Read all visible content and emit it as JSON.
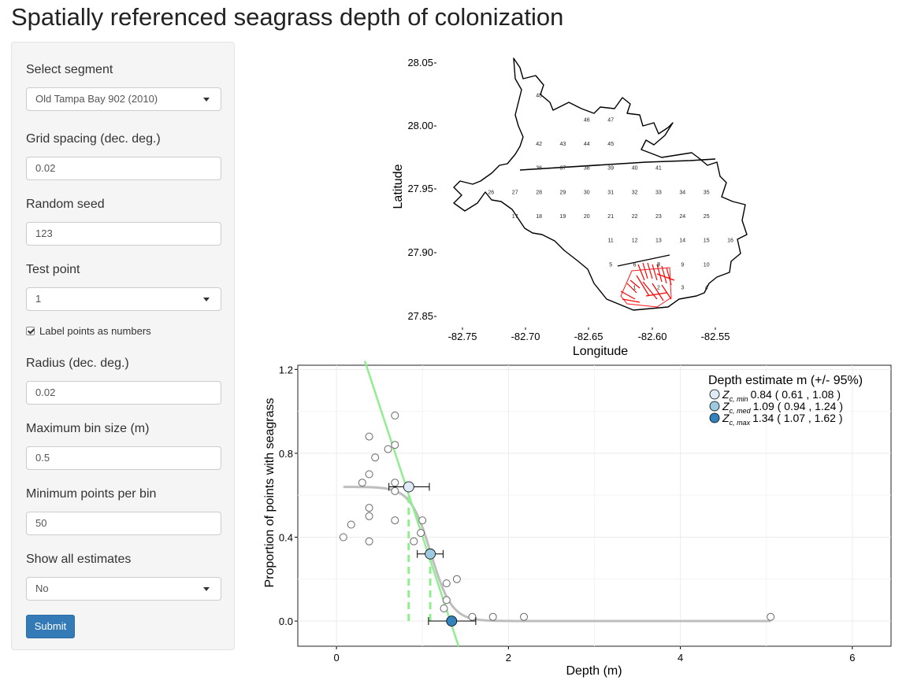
{
  "page": {
    "title": "Spatially referenced seagrass depth of colonization"
  },
  "sidebar": {
    "segment": {
      "label": "Select segment",
      "value": "Old Tampa Bay 902 (2010)"
    },
    "grid": {
      "label": "Grid spacing (dec. deg.)",
      "value": "0.02"
    },
    "seed": {
      "label": "Random seed",
      "value": "123"
    },
    "test_point": {
      "label": "Test point",
      "value": "1"
    },
    "label_points": {
      "label": "Label points as numbers",
      "checked": true
    },
    "radius": {
      "label": "Radius (dec. deg.)",
      "value": "0.02"
    },
    "max_bin": {
      "label": "Maximum bin size (m)",
      "value": "0.5"
    },
    "min_points": {
      "label": "Minimum points per bin",
      "value": "50"
    },
    "show_all": {
      "label": "Show all estimates",
      "value": "No"
    },
    "submit_label": "Submit"
  },
  "colors": {
    "accent": "#337ab7",
    "seagrass": "#ff0000",
    "fit_line": "#90ee90",
    "curve": "#bebebe",
    "zmin": "#deebf7",
    "zmed": "#9ecae1",
    "zmax": "#3182bd"
  },
  "map": {
    "xlabel": "Longitude",
    "ylabel": "Latitude",
    "x_ticks": [
      "-82.75",
      "-82.70",
      "-82.65",
      "-82.60",
      "-82.55"
    ],
    "y_ticks": [
      "28.05",
      "28.00",
      "27.95",
      "27.90",
      "27.85"
    ],
    "xlim": [
      -82.78,
      -82.51
    ],
    "ylim": [
      27.835,
      28.06
    ],
    "grid_points": [
      {
        "n": "1",
        "lon": -82.615,
        "lat": 27.866
      },
      {
        "n": "2",
        "lon": -82.595,
        "lat": 27.866
      },
      {
        "n": "3",
        "lon": -82.575,
        "lat": 27.866
      },
      {
        "n": "4",
        "lon": -82.555,
        "lat": 27.866
      },
      {
        "n": "5",
        "lon": -82.635,
        "lat": 27.885
      },
      {
        "n": "6",
        "lon": -82.615,
        "lat": 27.885
      },
      {
        "n": "7",
        "lon": -82.595,
        "lat": 27.885
      },
      {
        "n": "8",
        "lon": -82.595,
        "lat": 27.885
      },
      {
        "n": "9",
        "lon": -82.575,
        "lat": 27.885
      },
      {
        "n": "10",
        "lon": -82.555,
        "lat": 27.885
      },
      {
        "n": "11",
        "lon": -82.635,
        "lat": 27.905
      },
      {
        "n": "12",
        "lon": -82.615,
        "lat": 27.905
      },
      {
        "n": "13",
        "lon": -82.595,
        "lat": 27.905
      },
      {
        "n": "14",
        "lon": -82.575,
        "lat": 27.905
      },
      {
        "n": "15",
        "lon": -82.555,
        "lat": 27.905
      },
      {
        "n": "16",
        "lon": -82.535,
        "lat": 27.905
      },
      {
        "n": "17",
        "lon": -82.715,
        "lat": 27.925
      },
      {
        "n": "18",
        "lon": -82.695,
        "lat": 27.925
      },
      {
        "n": "19",
        "lon": -82.675,
        "lat": 27.925
      },
      {
        "n": "20",
        "lon": -82.655,
        "lat": 27.925
      },
      {
        "n": "21",
        "lon": -82.635,
        "lat": 27.925
      },
      {
        "n": "22",
        "lon": -82.615,
        "lat": 27.925
      },
      {
        "n": "23",
        "lon": -82.595,
        "lat": 27.925
      },
      {
        "n": "24",
        "lon": -82.575,
        "lat": 27.925
      },
      {
        "n": "25",
        "lon": -82.555,
        "lat": 27.925
      },
      {
        "n": "26",
        "lon": -82.735,
        "lat": 27.945
      },
      {
        "n": "27",
        "lon": -82.715,
        "lat": 27.945
      },
      {
        "n": "28",
        "lon": -82.695,
        "lat": 27.945
      },
      {
        "n": "29",
        "lon": -82.675,
        "lat": 27.945
      },
      {
        "n": "30",
        "lon": -82.655,
        "lat": 27.945
      },
      {
        "n": "31",
        "lon": -82.635,
        "lat": 27.945
      },
      {
        "n": "32",
        "lon": -82.615,
        "lat": 27.945
      },
      {
        "n": "33",
        "lon": -82.595,
        "lat": 27.945
      },
      {
        "n": "34",
        "lon": -82.575,
        "lat": 27.945
      },
      {
        "n": "35",
        "lon": -82.555,
        "lat": 27.945
      },
      {
        "n": "36",
        "lon": -82.695,
        "lat": 27.965
      },
      {
        "n": "37",
        "lon": -82.675,
        "lat": 27.965
      },
      {
        "n": "38",
        "lon": -82.655,
        "lat": 27.965
      },
      {
        "n": "39",
        "lon": -82.635,
        "lat": 27.965
      },
      {
        "n": "40",
        "lon": -82.615,
        "lat": 27.965
      },
      {
        "n": "41",
        "lon": -82.595,
        "lat": 27.965
      },
      {
        "n": "42",
        "lon": -82.695,
        "lat": 27.985
      },
      {
        "n": "43",
        "lon": -82.675,
        "lat": 27.985
      },
      {
        "n": "44",
        "lon": -82.655,
        "lat": 27.985
      },
      {
        "n": "45",
        "lon": -82.635,
        "lat": 27.985
      },
      {
        "n": "46",
        "lon": -82.655,
        "lat": 28.005
      },
      {
        "n": "47",
        "lon": -82.635,
        "lat": 28.005
      },
      {
        "n": "48",
        "lon": -82.695,
        "lat": 28.025
      }
    ]
  },
  "chart_data": {
    "type": "scatter",
    "xlabel": "Depth (m)",
    "ylabel": "Proportion of points with seagrass",
    "xlim": [
      -0.45,
      6.45
    ],
    "ylim": [
      -0.12,
      1.22
    ],
    "x_ticks": [
      "0",
      "2",
      "4",
      "6"
    ],
    "y_ticks": [
      "0.0",
      "0.4",
      "0.8",
      "1.2"
    ],
    "grid": true,
    "points": [
      {
        "x": 0.08,
        "y": 0.4
      },
      {
        "x": 0.17,
        "y": 0.46
      },
      {
        "x": 0.3,
        "y": 0.66
      },
      {
        "x": 0.38,
        "y": 0.88
      },
      {
        "x": 0.38,
        "y": 0.7
      },
      {
        "x": 0.38,
        "y": 0.54
      },
      {
        "x": 0.38,
        "y": 0.5
      },
      {
        "x": 0.38,
        "y": 0.38
      },
      {
        "x": 0.45,
        "y": 0.78
      },
      {
        "x": 0.6,
        "y": 0.82
      },
      {
        "x": 0.68,
        "y": 0.98
      },
      {
        "x": 0.68,
        "y": 0.84
      },
      {
        "x": 0.68,
        "y": 0.66
      },
      {
        "x": 0.68,
        "y": 0.62
      },
      {
        "x": 0.68,
        "y": 0.48
      },
      {
        "x": 0.9,
        "y": 0.38
      },
      {
        "x": 1.0,
        "y": 0.48
      },
      {
        "x": 0.98,
        "y": 0.42
      },
      {
        "x": 1.28,
        "y": 0.18
      },
      {
        "x": 1.28,
        "y": 0.1
      },
      {
        "x": 1.25,
        "y": 0.06
      },
      {
        "x": 1.4,
        "y": 0.2
      },
      {
        "x": 1.58,
        "y": 0.02
      },
      {
        "x": 1.82,
        "y": 0.02
      },
      {
        "x": 2.18,
        "y": 0.02
      },
      {
        "x": 5.05,
        "y": 0.02
      }
    ],
    "curve": {
      "upper": 0.64,
      "lower": 0.0,
      "mid": 1.1,
      "scale": 0.12,
      "x_start": 0.08,
      "x_end": 5.05
    },
    "fit_line": {
      "x1": 0.33,
      "y1": 1.24,
      "x2": 1.42,
      "y2": -0.12
    },
    "estimates": [
      {
        "x": 0.84,
        "y": 0.64,
        "lo": 0.61,
        "hi": 1.08
      },
      {
        "x": 1.09,
        "y": 0.32,
        "lo": 0.94,
        "hi": 1.24
      },
      {
        "x": 1.34,
        "y": 0.0,
        "lo": 1.07,
        "hi": 1.62
      }
    ],
    "dashed": [
      {
        "x": 0.84,
        "y0": 0.0,
        "y1": 0.6
      },
      {
        "x": 1.09,
        "y0": 0.0,
        "y1": 0.3
      }
    ],
    "legend": {
      "title": "Depth estimate m (+/- 95%)",
      "position": "top-right",
      "entries": [
        {
          "main": "Z",
          "sub": "c, min",
          "text": "0.84 ( 0.61 ,  1.08 )"
        },
        {
          "main": "Z",
          "sub": "c, med",
          "text": "1.09 ( 0.94 ,  1.24 )"
        },
        {
          "main": "Z",
          "sub": "c, max",
          "text": "1.34 ( 1.07 ,  1.62 )"
        }
      ]
    }
  }
}
